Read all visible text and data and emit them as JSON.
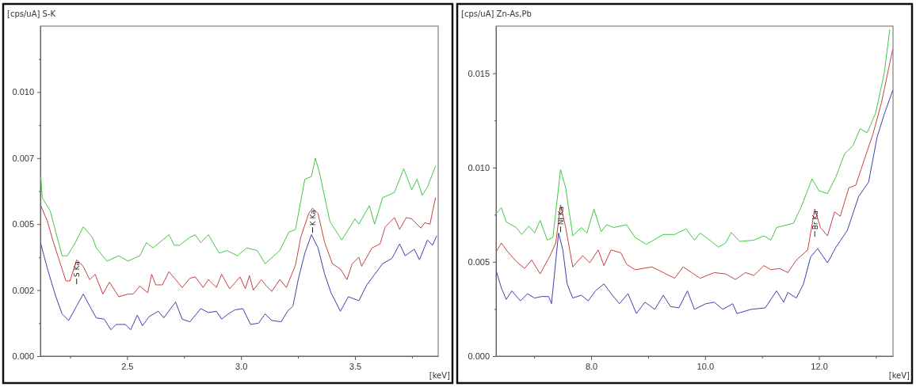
{
  "chart_data": [
    {
      "type": "line",
      "ylabel": "[cps/uA] S-K",
      "xlabel": "[keV]",
      "xlim": [
        2.12,
        3.865
      ],
      "ylim": [
        0,
        0.0125
      ],
      "xticks": [
        {
          "value": 2.25,
          "label": null
        },
        {
          "value": 2.5,
          "label": "2.5"
        },
        {
          "value": 2.75,
          "label": null
        },
        {
          "value": 3,
          "label": "3.0"
        },
        {
          "value": 3.25,
          "label": null
        },
        {
          "value": 3.5,
          "label": "3.5"
        },
        {
          "value": 3.75,
          "label": null
        }
      ],
      "yticks": [
        {
          "value": 0,
          "label": "0.000"
        },
        {
          "value": 0.00125,
          "label": null
        },
        {
          "value": 0.0025,
          "label": "0.002"
        },
        {
          "value": 0.00375,
          "label": null
        },
        {
          "value": 0.005,
          "label": "0.005"
        },
        {
          "value": 0.00625,
          "label": null
        },
        {
          "value": 0.0075,
          "label": "0.007"
        },
        {
          "value": 0.00875,
          "label": null
        },
        {
          "value": 0.01,
          "label": "0.010"
        },
        {
          "value": 0.01125,
          "label": null
        }
      ],
      "annotations": [
        {
          "text": "S Ka",
          "x": 2.279,
          "y": 0.00365
        },
        {
          "text": "K Ka",
          "x": 3.314,
          "y": 0.0056
        }
      ],
      "series": [
        {
          "color": "#40c840",
          "x": [
            2.122,
            2.128,
            2.163,
            2.215,
            2.238,
            2.273,
            2.308,
            2.348,
            2.365,
            2.412,
            2.464,
            2.504,
            2.556,
            2.585,
            2.614,
            2.684,
            2.707,
            2.73,
            2.776,
            2.799,
            2.823,
            2.857,
            2.904,
            2.938,
            2.985,
            3.025,
            3.071,
            3.106,
            3.17,
            3.21,
            3.239,
            3.28,
            3.309,
            3.326,
            3.343,
            3.39,
            3.442,
            3.5,
            3.517,
            3.563,
            3.586,
            3.621,
            3.673,
            3.714,
            3.749,
            3.772,
            3.795,
            3.818,
            3.853
          ],
          "values": [
            0.0068,
            0.006,
            0.0055,
            0.0038,
            0.0038,
            0.0043,
            0.0049,
            0.0045,
            0.0041,
            0.0036,
            0.0038,
            0.0036,
            0.0038,
            0.0043,
            0.0041,
            0.0046,
            0.0042,
            0.0042,
            0.0045,
            0.0046,
            0.0043,
            0.0046,
            0.0039,
            0.004,
            0.0038,
            0.0041,
            0.004,
            0.0035,
            0.004,
            0.0047,
            0.0048,
            0.0067,
            0.0068,
            0.0075,
            0.007,
            0.0051,
            0.0044,
            0.0052,
            0.005,
            0.0057,
            0.005,
            0.006,
            0.0062,
            0.0071,
            0.0063,
            0.0067,
            0.0061,
            0.0064,
            0.0072
          ]
        },
        {
          "color": "#c84040",
          "x": [
            2.122,
            2.151,
            2.174,
            2.215,
            2.232,
            2.25,
            2.279,
            2.308,
            2.336,
            2.36,
            2.394,
            2.423,
            2.464,
            2.504,
            2.527,
            2.556,
            2.591,
            2.608,
            2.626,
            2.655,
            2.684,
            2.713,
            2.742,
            2.776,
            2.799,
            2.834,
            2.857,
            2.892,
            2.915,
            2.95,
            2.996,
            3.019,
            3.037,
            3.054,
            3.089,
            3.112,
            3.135,
            3.17,
            3.199,
            3.239,
            3.262,
            3.297,
            3.314,
            3.338,
            3.367,
            3.401,
            3.436,
            3.465,
            3.488,
            3.517,
            3.529,
            3.575,
            3.61,
            3.633,
            3.673,
            3.696,
            3.725,
            3.749,
            3.789,
            3.806,
            3.829,
            3.853
          ],
          "values": [
            0.0057,
            0.0051,
            0.0044,
            0.0033,
            0.00285,
            0.00285,
            0.00365,
            0.0034,
            0.0029,
            0.0031,
            0.00235,
            0.0028,
            0.00225,
            0.00235,
            0.00235,
            0.00265,
            0.0024,
            0.0031,
            0.0027,
            0.0027,
            0.0032,
            0.0029,
            0.0026,
            0.00295,
            0.003,
            0.0026,
            0.0029,
            0.0026,
            0.0031,
            0.00255,
            0.003,
            0.00255,
            0.00305,
            0.0025,
            0.0029,
            0.00265,
            0.00245,
            0.0029,
            0.0026,
            0.00345,
            0.0045,
            0.0054,
            0.0056,
            0.0054,
            0.0043,
            0.0035,
            0.0033,
            0.0029,
            0.0035,
            0.00375,
            0.0034,
            0.0041,
            0.00425,
            0.0049,
            0.00525,
            0.0048,
            0.00525,
            0.0052,
            0.00485,
            0.00505,
            0.005,
            0.006
          ]
        },
        {
          "color": "#4040b0",
          "x": [
            2.122,
            2.151,
            2.186,
            2.215,
            2.244,
            2.279,
            2.308,
            2.336,
            2.365,
            2.4,
            2.429,
            2.452,
            2.493,
            2.516,
            2.545,
            2.568,
            2.597,
            2.637,
            2.661,
            2.713,
            2.742,
            2.776,
            2.823,
            2.857,
            2.892,
            2.915,
            2.944,
            2.973,
            3.008,
            3.042,
            3.077,
            3.106,
            3.135,
            3.176,
            3.204,
            3.228,
            3.251,
            3.28,
            3.309,
            3.338,
            3.367,
            3.395,
            3.436,
            3.471,
            3.517,
            3.552,
            3.621,
            3.662,
            3.696,
            3.72,
            3.76,
            3.783,
            3.818,
            3.84,
            3.858
          ],
          "values": [
            0.00425,
            0.0033,
            0.0023,
            0.0016,
            0.00135,
            0.0019,
            0.00235,
            0.0019,
            0.00145,
            0.0014,
            0.001,
            0.0012,
            0.0012,
            0.001,
            0.00155,
            0.00115,
            0.0015,
            0.0017,
            0.00145,
            0.00205,
            0.0014,
            0.0013,
            0.0018,
            0.00165,
            0.0017,
            0.0014,
            0.0016,
            0.00175,
            0.0018,
            0.0012,
            0.00125,
            0.0016,
            0.00135,
            0.0013,
            0.0017,
            0.0019,
            0.0029,
            0.0039,
            0.0046,
            0.0041,
            0.0031,
            0.0024,
            0.0017,
            0.00225,
            0.0021,
            0.0027,
            0.0035,
            0.0037,
            0.00425,
            0.0038,
            0.00405,
            0.00365,
            0.0044,
            0.0042,
            0.00455
          ]
        }
      ]
    },
    {
      "type": "line",
      "ylabel": "[cps/uA] Zn-As,Pb",
      "xlabel": "[keV]",
      "xlim": [
        6.33,
        13.3
      ],
      "ylim": [
        0,
        0.0175
      ],
      "xticks": [
        {
          "value": 7,
          "label": null
        },
        {
          "value": 8,
          "label": "8.0"
        },
        {
          "value": 9,
          "label": null
        },
        {
          "value": 10,
          "label": "10.0"
        },
        {
          "value": 11,
          "label": null
        },
        {
          "value": 12,
          "label": "12.0"
        },
        {
          "value": 13,
          "label": null
        }
      ],
      "yticks": [
        {
          "value": 0,
          "label": "0.000"
        },
        {
          "value": 0.0025,
          "label": null
        },
        {
          "value": 0.005,
          "label": "0.005"
        },
        {
          "value": 0.0075,
          "label": null
        },
        {
          "value": 0.01,
          "label": "0.010"
        },
        {
          "value": 0.0125,
          "label": null
        },
        {
          "value": 0.015,
          "label": "0.015"
        }
      ],
      "annotations": [
        {
          "text": "Ni Ka",
          "x": 7.463,
          "y": 0.00802
        },
        {
          "text": "Br Ka",
          "x": 11.926,
          "y": 0.0078
        }
      ],
      "series": [
        {
          "color": "#40c840",
          "x": [
            6.335,
            6.424,
            6.509,
            6.683,
            6.782,
            6.907,
            7.006,
            7.105,
            7.23,
            7.329,
            7.463,
            7.553,
            7.677,
            7.826,
            7.925,
            8.05,
            8.174,
            8.273,
            8.398,
            8.621,
            8.77,
            8.969,
            9.267,
            9.466,
            9.665,
            9.814,
            9.913,
            10.112,
            10.237,
            10.361,
            10.46,
            10.609,
            10.858,
            11.032,
            11.156,
            11.255,
            11.554,
            11.703,
            11.877,
            12.001,
            12.15,
            12.299,
            12.448,
            12.597,
            12.722,
            12.846,
            12.995,
            13.144,
            13.243
          ],
          "values": [
            0.00757,
            0.00787,
            0.00712,
            0.00682,
            0.00645,
            0.0069,
            0.00653,
            0.0072,
            0.00615,
            0.0063,
            0.00989,
            0.00892,
            0.00638,
            0.00682,
            0.00653,
            0.0078,
            0.0066,
            0.00697,
            0.00682,
            0.00697,
            0.0063,
            0.00593,
            0.00645,
            0.00645,
            0.00675,
            0.00615,
            0.00653,
            0.00608,
            0.00578,
            0.006,
            0.00656,
            0.00608,
            0.00615,
            0.00638,
            0.00615,
            0.00682,
            0.00705,
            0.00802,
            0.0094,
            0.00877,
            0.00862,
            0.00952,
            0.01072,
            0.01116,
            0.01206,
            0.01184,
            0.01289,
            0.01498,
            0.0173
          ]
        },
        {
          "color": "#c84040",
          "x": [
            6.335,
            6.424,
            6.509,
            6.683,
            6.832,
            6.956,
            7.105,
            7.279,
            7.379,
            7.463,
            7.553,
            7.677,
            7.851,
            7.975,
            8.124,
            8.224,
            8.348,
            8.522,
            8.621,
            8.77,
            9.069,
            9.267,
            9.466,
            9.615,
            9.764,
            9.913,
            10.162,
            10.361,
            10.535,
            10.709,
            10.858,
            11.032,
            11.156,
            11.305,
            11.454,
            11.603,
            11.802,
            11.926,
            12.026,
            12.15,
            12.274,
            12.374,
            12.523,
            12.647,
            12.796,
            12.946,
            13.095,
            13.293
          ],
          "values": [
            0.00555,
            0.006,
            0.00563,
            0.00503,
            0.00465,
            0.0051,
            0.00436,
            0.00533,
            0.006,
            0.00802,
            0.00682,
            0.00473,
            0.00533,
            0.00495,
            0.00563,
            0.0048,
            0.00563,
            0.00548,
            0.00488,
            0.00458,
            0.00473,
            0.00443,
            0.00413,
            0.00473,
            0.00443,
            0.00413,
            0.00443,
            0.00436,
            0.00406,
            0.00443,
            0.00428,
            0.0048,
            0.00458,
            0.00465,
            0.00443,
            0.0051,
            0.00563,
            0.0078,
            0.00682,
            0.00638,
            0.00765,
            0.00742,
            0.00892,
            0.00907,
            0.01042,
            0.01176,
            0.01341,
            0.01625
          ]
        },
        {
          "color": "#4040b0",
          "x": [
            6.335,
            6.424,
            6.509,
            6.608,
            6.757,
            6.882,
            7.006,
            7.13,
            7.254,
            7.304,
            7.428,
            7.503,
            7.578,
            7.677,
            7.826,
            7.95,
            8.075,
            8.224,
            8.373,
            8.497,
            8.646,
            8.795,
            8.944,
            9.118,
            9.267,
            9.392,
            9.541,
            9.69,
            9.814,
            10.013,
            10.162,
            10.311,
            10.485,
            10.56,
            10.808,
            11.057,
            11.255,
            11.38,
            11.454,
            11.603,
            11.728,
            11.852,
            11.976,
            12.15,
            12.299,
            12.498,
            12.697,
            12.871,
            13.02,
            13.144,
            13.293
          ],
          "values": [
            0.0045,
            0.00361,
            0.00301,
            0.00346,
            0.00293,
            0.00331,
            0.00308,
            0.00316,
            0.00316,
            0.00278,
            0.00653,
            0.00563,
            0.00383,
            0.00308,
            0.00323,
            0.00293,
            0.00346,
            0.00383,
            0.00323,
            0.00278,
            0.00331,
            0.00226,
            0.00286,
            0.00248,
            0.00323,
            0.00263,
            0.00256,
            0.00346,
            0.00248,
            0.00278,
            0.00286,
            0.00248,
            0.00278,
            0.00226,
            0.00248,
            0.00256,
            0.00346,
            0.00286,
            0.00338,
            0.00308,
            0.00383,
            0.00525,
            0.0057,
            0.00495,
            0.00578,
            0.00667,
            0.00847,
            0.00922,
            0.01161,
            0.01281,
            0.01408
          ]
        }
      ]
    }
  ]
}
